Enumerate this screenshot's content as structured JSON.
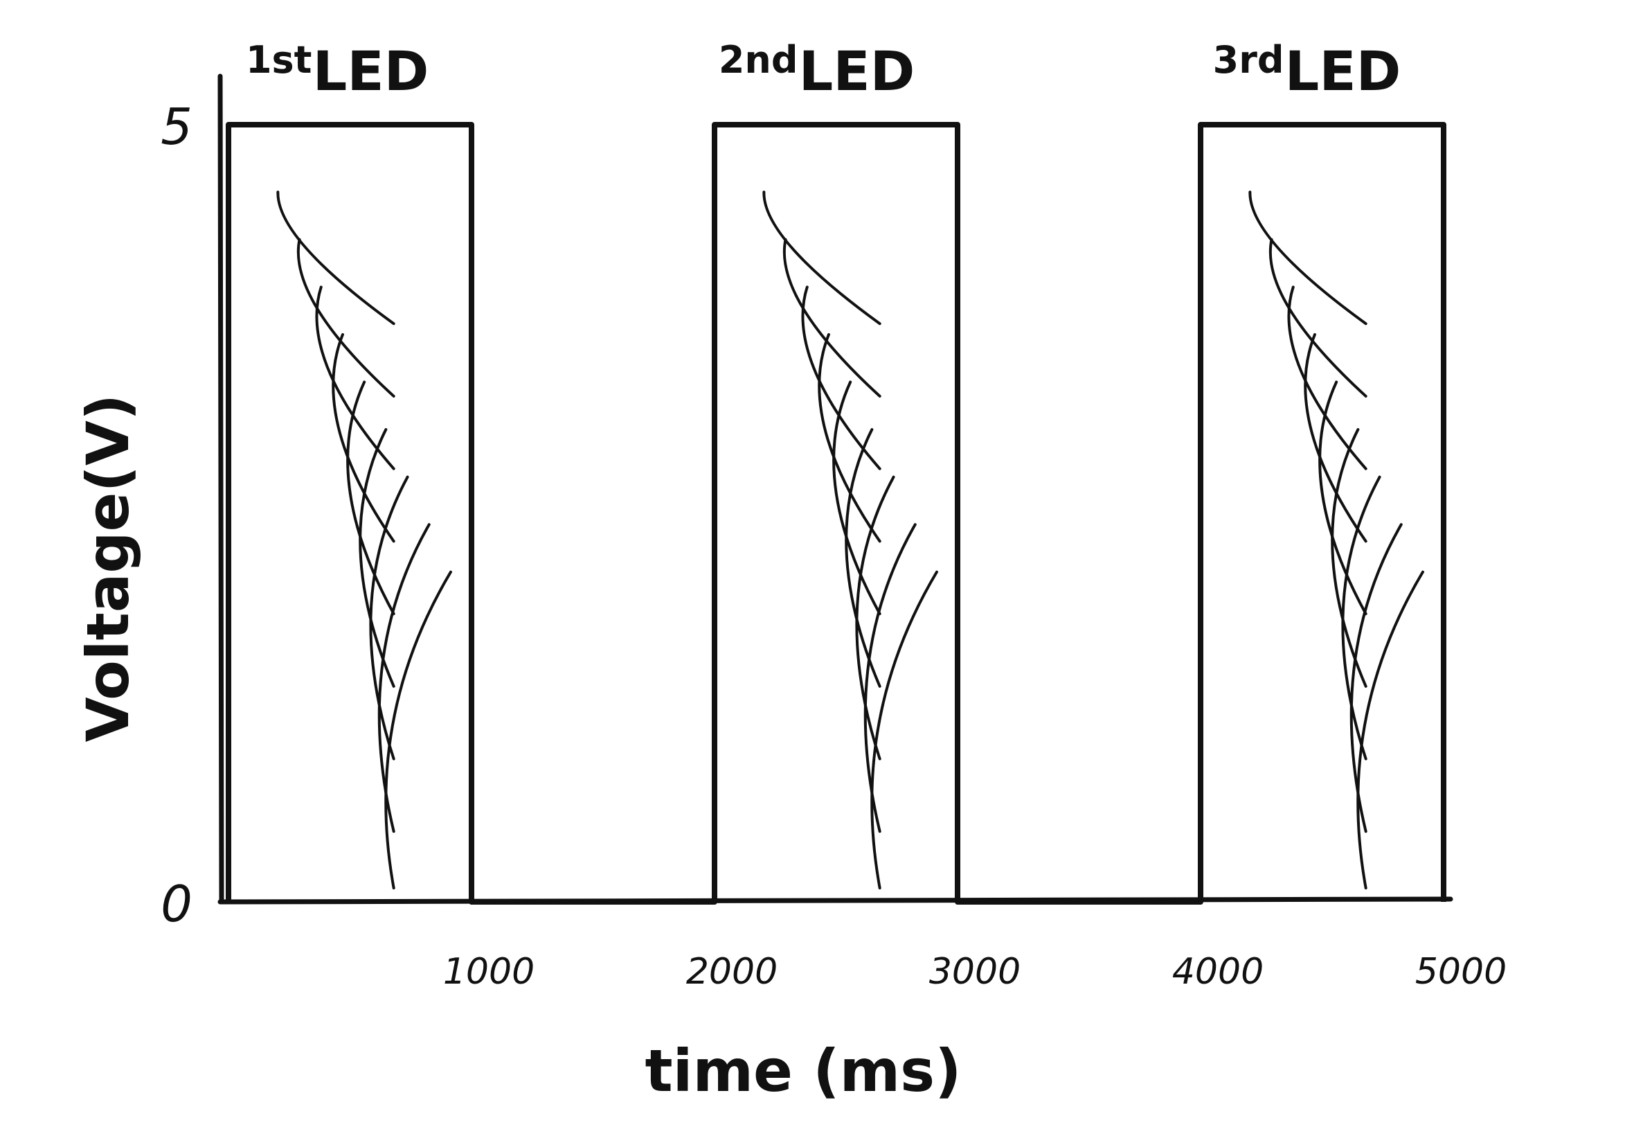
{
  "chart_data": {
    "type": "line",
    "style": "hand-drawn sketch",
    "title": "",
    "xlabel": "time (ms)",
    "ylabel": "Voltage(V)",
    "x_ticks": [
      "1000",
      "2000",
      "3000",
      "4000",
      "5000"
    ],
    "y_ticks": [
      "5",
      "0"
    ],
    "xlim": [
      0,
      5000
    ],
    "ylim": [
      0,
      5
    ],
    "grid": false,
    "series": [
      {
        "x": [
          0,
          0,
          1000,
          1000,
          2000,
          2000,
          3000,
          3000,
          4000,
          4000,
          5000,
          5000
        ],
        "y": [
          0,
          5,
          5,
          0,
          0,
          5,
          5,
          0,
          0,
          5,
          5,
          0
        ]
      }
    ],
    "annotations": [
      {
        "ordinal": "1st",
        "text": "LED",
        "x_range": [
          0,
          1000
        ]
      },
      {
        "ordinal": "2nd",
        "text": "LED",
        "x_range": [
          2000,
          3000
        ]
      },
      {
        "ordinal": "3rd",
        "text": "LED",
        "x_range": [
          4000,
          5000
        ]
      }
    ],
    "pulse_fill": "diagonal hatching"
  }
}
